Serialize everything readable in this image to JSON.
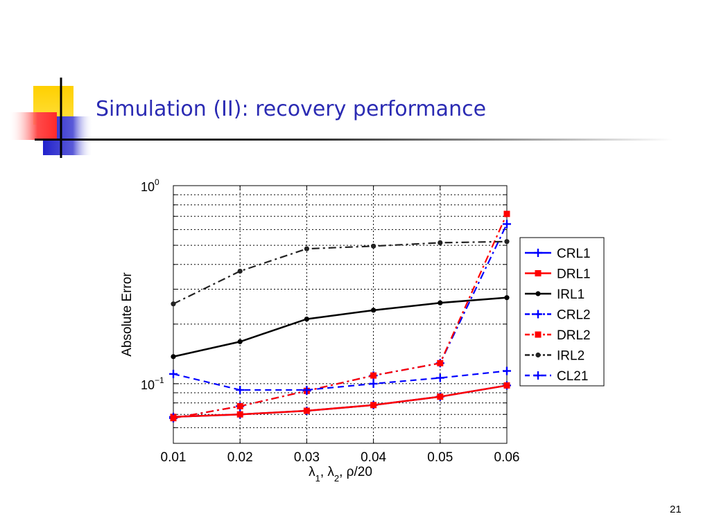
{
  "slide": {
    "title": "Simulation (II): recovery performance",
    "page_number": "21",
    "colors": {
      "title": "#2b2bb3",
      "deco_yellow": "#ffd400",
      "deco_red": "#ff3a3a",
      "deco_blue": "#2626c9"
    }
  },
  "chart_data": {
    "type": "line",
    "title": "",
    "xlabel": "λ1, λ2, ρ/20",
    "ylabel": "Absolute Error",
    "x": [
      0.01,
      0.02,
      0.03,
      0.04,
      0.05,
      0.06
    ],
    "x_tick_labels": [
      "0.01",
      "0.02",
      "0.03",
      "0.04",
      "0.05",
      "0.06"
    ],
    "xlim": [
      0.01,
      0.06
    ],
    "yscale": "log",
    "ylim": [
      0.05,
      1.0
    ],
    "y_ticks": [
      {
        "base": "10",
        "exp": "0",
        "value": 1.0
      },
      {
        "base": "10",
        "exp": "−1",
        "value": 0.1
      }
    ],
    "grid": true,
    "legend_position": "right",
    "series": [
      {
        "name": "CRL1",
        "color": "#0000ff",
        "style": "solid",
        "marker": "plus",
        "values": [
          0.068,
          0.07,
          0.073,
          0.078,
          0.086,
          0.098
        ]
      },
      {
        "name": "DRL1",
        "color": "#ff0000",
        "style": "solid",
        "marker": "square",
        "values": [
          0.068,
          0.07,
          0.073,
          0.078,
          0.086,
          0.098
        ]
      },
      {
        "name": "IRL1",
        "color": "#000000",
        "style": "solid",
        "marker": "dot",
        "values": [
          0.137,
          0.163,
          0.212,
          0.235,
          0.256,
          0.272
        ]
      },
      {
        "name": "CRL2",
        "color": "#0000ff",
        "style": "dashdot",
        "marker": "plus",
        "values": [
          0.067,
          0.077,
          0.092,
          0.11,
          0.127,
          0.64
        ]
      },
      {
        "name": "DRL2",
        "color": "#ff0000",
        "style": "dashdot",
        "marker": "square",
        "values": [
          0.067,
          0.077,
          0.092,
          0.11,
          0.127,
          0.72
        ]
      },
      {
        "name": "IRL2",
        "color": "#222222",
        "style": "dashdot",
        "marker": "dot",
        "values": [
          0.253,
          0.37,
          0.48,
          0.495,
          0.515,
          0.522
        ]
      },
      {
        "name": "CL21",
        "color": "#0000ff",
        "style": "dashed",
        "marker": "plus",
        "values": [
          0.112,
          0.093,
          0.093,
          0.1,
          0.107,
          0.116
        ]
      }
    ]
  }
}
